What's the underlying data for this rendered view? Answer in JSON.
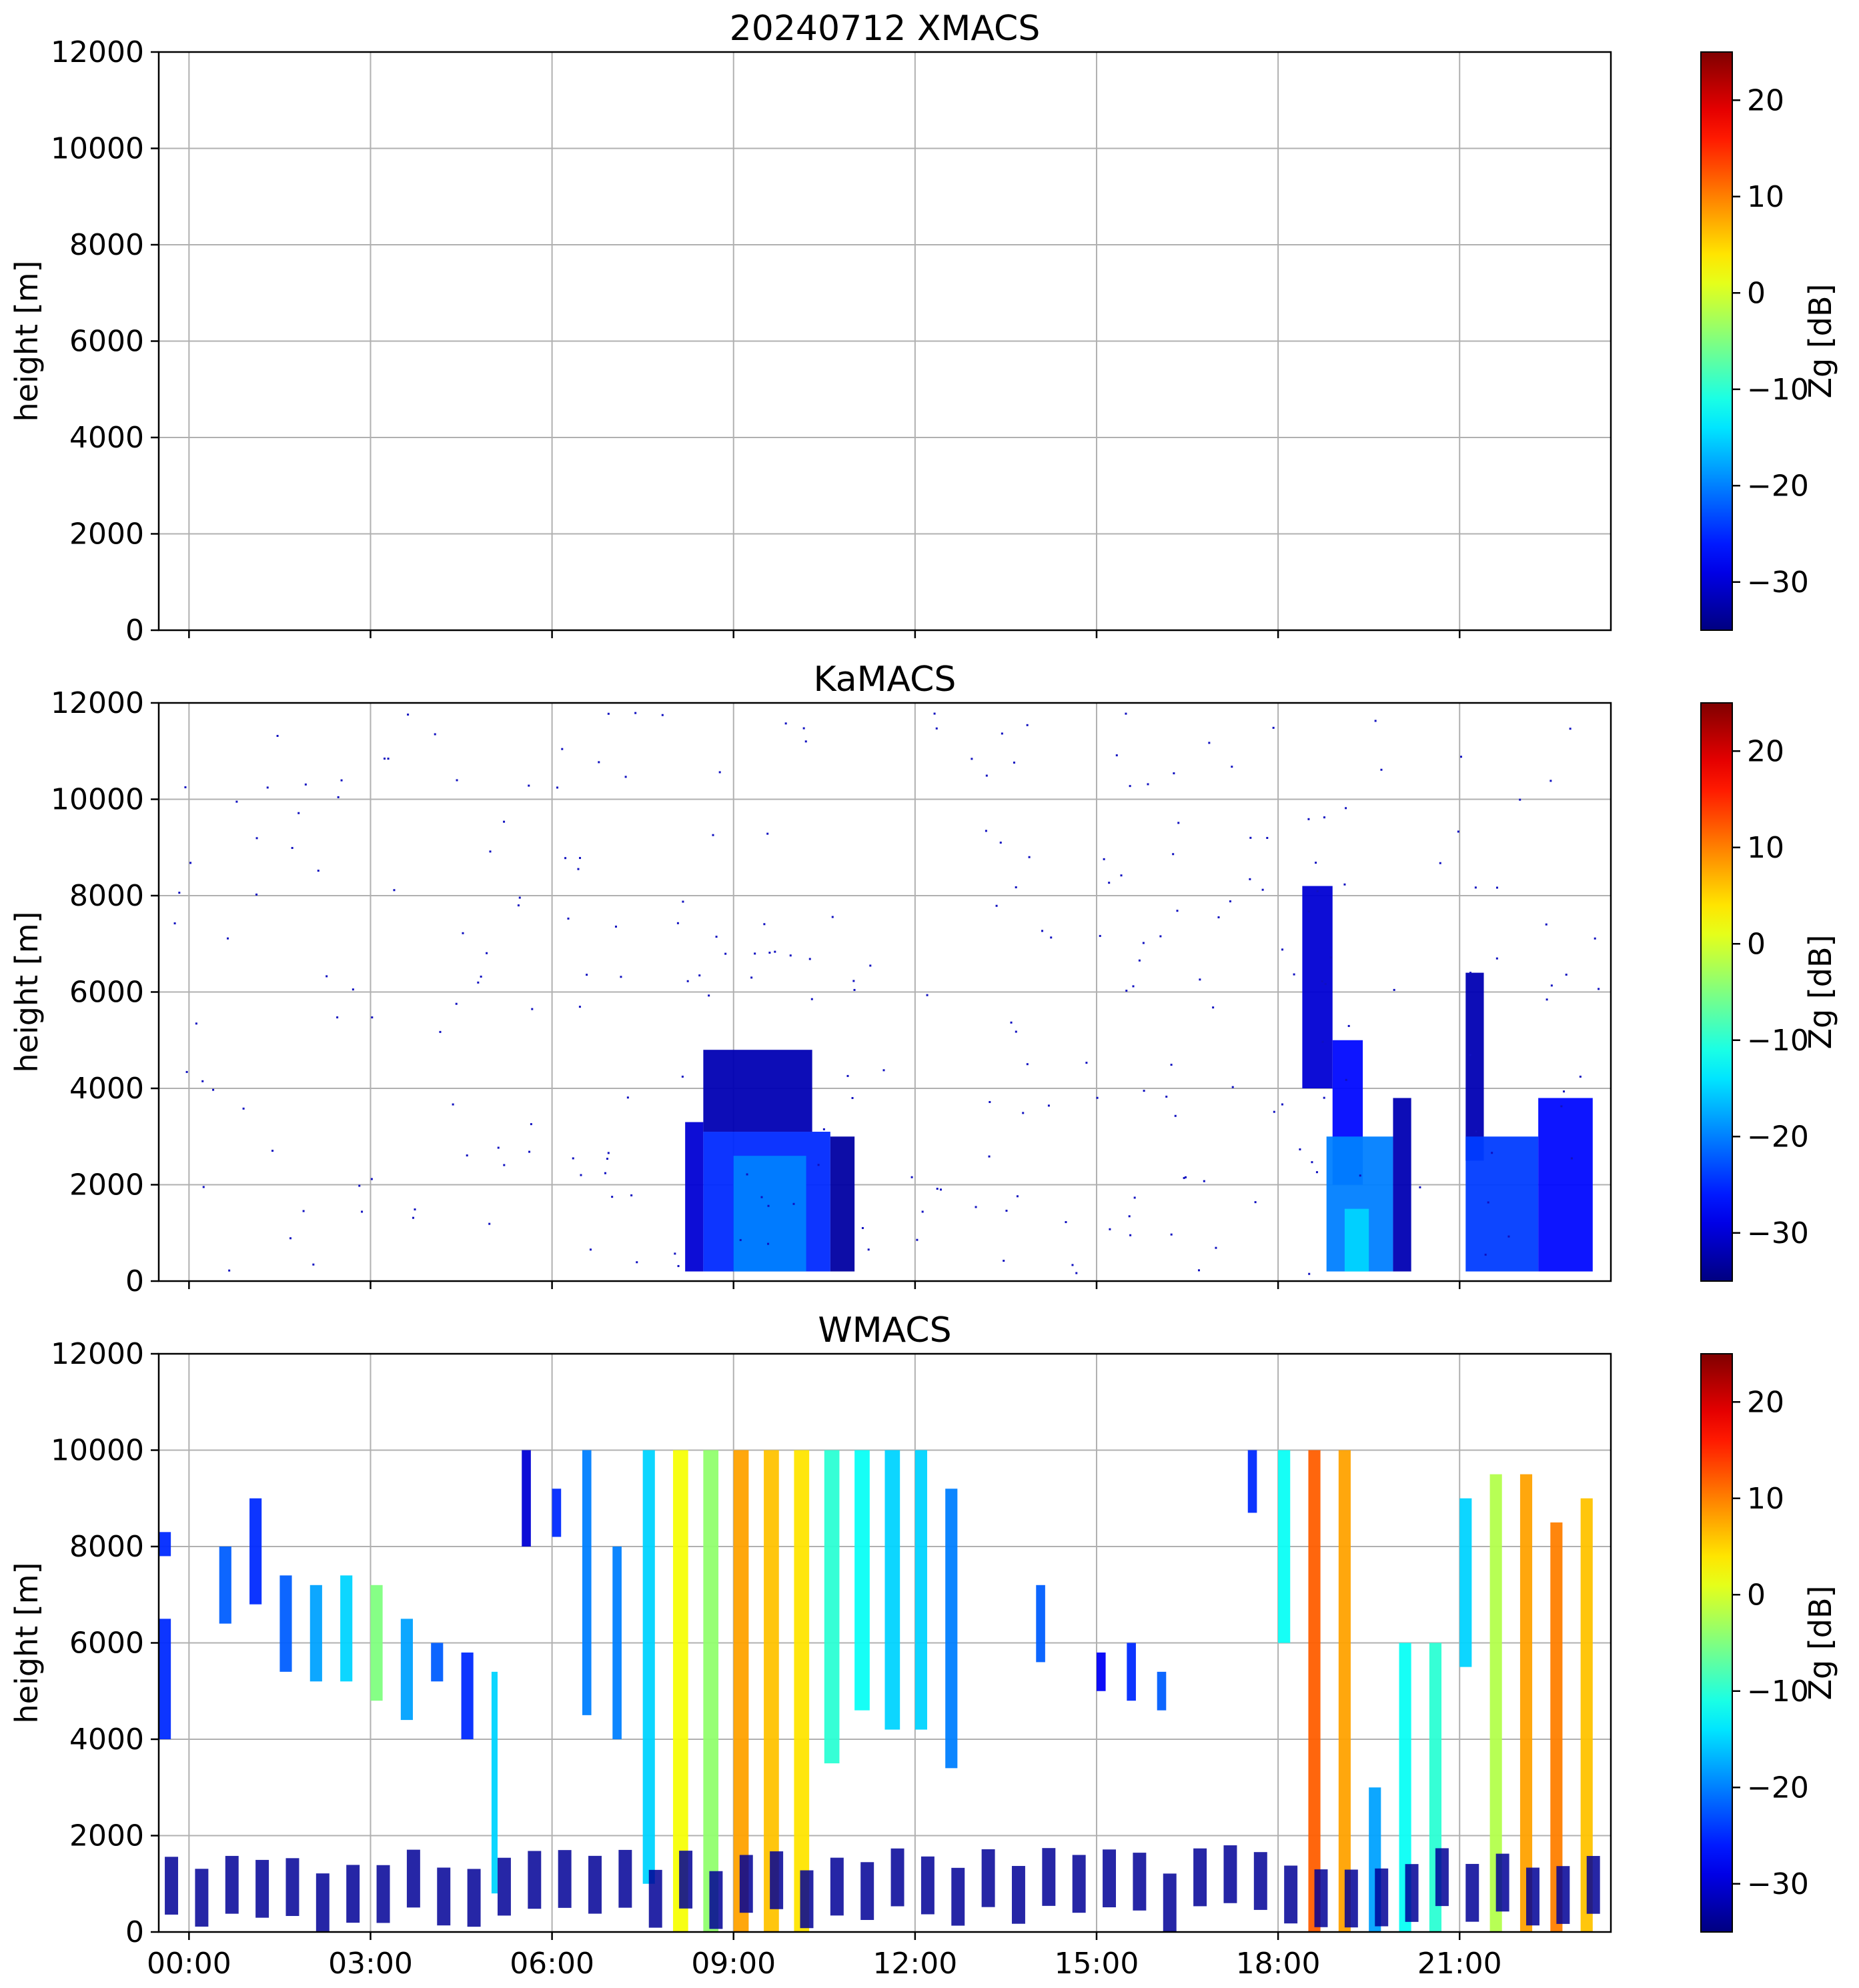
{
  "figure_title": "20240712 XMACS",
  "colorbar": {
    "label": "Zg [dB]",
    "range": [
      -35,
      25
    ],
    "ticks": [
      "20",
      "10",
      "0",
      "−10",
      "−20",
      "−30"
    ],
    "tick_values": [
      20,
      10,
      0,
      -10,
      -20,
      -30
    ],
    "colormap": "jet",
    "colors": [
      "#00007f",
      "#0000ff",
      "#007fff",
      "#00ffff",
      "#7fff7f",
      "#ffff00",
      "#ff7f00",
      "#ff0000",
      "#7f0000"
    ]
  },
  "xaxis": {
    "range_hours": [
      -0.5,
      23.5
    ],
    "tick_labels": [
      "00:00",
      "03:00",
      "06:00",
      "09:00",
      "12:00",
      "15:00",
      "18:00",
      "21:00"
    ]
  },
  "yaxis": {
    "label": "height [m]",
    "range": [
      0,
      12000
    ],
    "tick_labels": [
      "0",
      "2000",
      "4000",
      "6000",
      "8000",
      "10000",
      "12000"
    ]
  },
  "panels": [
    {
      "id": "xmacs",
      "title": "20240712 XMACS",
      "show_xticklabels": false
    },
    {
      "id": "kamacs",
      "title": "KaMACS",
      "show_xticklabels": false
    },
    {
      "id": "wmacs",
      "title": "WMACS",
      "show_xticklabels": true
    }
  ],
  "chart_data": [
    {
      "type": "heatmap",
      "title": "20240712 XMACS",
      "xlabel": "",
      "ylabel": "height [m]",
      "ylim": [
        0,
        12000
      ],
      "grid": true,
      "blocks": []
    },
    {
      "type": "heatmap",
      "title": "KaMACS",
      "xlabel": "",
      "ylabel": "height [m]",
      "ylim": [
        0,
        12000
      ],
      "grid": true,
      "blocks": [
        {
          "t0": 8.2,
          "t1": 8.5,
          "h0": 200,
          "h1": 3300,
          "zg": -30
        },
        {
          "t0": 8.5,
          "t1": 10.6,
          "h0": 200,
          "h1": 3100,
          "zg": -25
        },
        {
          "t0": 9.0,
          "t1": 10.2,
          "h0": 200,
          "h1": 2600,
          "zg": -20
        },
        {
          "t0": 8.5,
          "t1": 10.3,
          "h0": 3100,
          "h1": 4800,
          "zg": -32
        },
        {
          "t0": 10.6,
          "t1": 11.0,
          "h0": 200,
          "h1": 3000,
          "zg": -33
        },
        {
          "t0": 18.4,
          "t1": 18.9,
          "h0": 4000,
          "h1": 8200,
          "zg": -30
        },
        {
          "t0": 18.9,
          "t1": 19.4,
          "h0": 2000,
          "h1": 5000,
          "zg": -27
        },
        {
          "t0": 18.8,
          "t1": 19.9,
          "h0": 200,
          "h1": 3000,
          "zg": -20
        },
        {
          "t0": 19.1,
          "t1": 19.5,
          "h0": 200,
          "h1": 1500,
          "zg": -15
        },
        {
          "t0": 19.9,
          "t1": 20.2,
          "h0": 200,
          "h1": 3800,
          "zg": -32
        },
        {
          "t0": 21.1,
          "t1": 21.4,
          "h0": 2500,
          "h1": 6400,
          "zg": -32
        },
        {
          "t0": 21.1,
          "t1": 22.3,
          "h0": 200,
          "h1": 3000,
          "zg": -24
        },
        {
          "t0": 22.3,
          "t1": 23.2,
          "h0": 200,
          "h1": 3800,
          "zg": -27
        }
      ]
    },
    {
      "type": "heatmap",
      "title": "WMACS",
      "xlabel": "",
      "ylabel": "height [m]",
      "ylim": [
        0,
        12000
      ],
      "grid": true,
      "blocks": [
        {
          "t0": -0.5,
          "t1": -0.3,
          "h0": 4000,
          "h1": 6500,
          "zg": -25
        },
        {
          "t0": -0.5,
          "t1": -0.3,
          "h0": 7800,
          "h1": 8300,
          "zg": -25
        },
        {
          "t0": 0.5,
          "t1": 0.7,
          "h0": 6400,
          "h1": 8000,
          "zg": -22
        },
        {
          "t0": 1.0,
          "t1": 1.2,
          "h0": 6800,
          "h1": 9000,
          "zg": -25
        },
        {
          "t0": 1.5,
          "t1": 1.7,
          "h0": 5400,
          "h1": 7400,
          "zg": -22
        },
        {
          "t0": 2.0,
          "t1": 2.2,
          "h0": 5200,
          "h1": 7200,
          "zg": -18
        },
        {
          "t0": 2.5,
          "t1": 2.7,
          "h0": 5200,
          "h1": 7400,
          "zg": -15
        },
        {
          "t0": 3.0,
          "t1": 3.2,
          "h0": 4800,
          "h1": 7200,
          "zg": -5
        },
        {
          "t0": 3.5,
          "t1": 3.7,
          "h0": 4400,
          "h1": 6500,
          "zg": -18
        },
        {
          "t0": 4.0,
          "t1": 4.2,
          "h0": 5200,
          "h1": 6000,
          "zg": -22
        },
        {
          "t0": 4.5,
          "t1": 4.7,
          "h0": 4000,
          "h1": 5800,
          "zg": -25
        },
        {
          "t0": 5.0,
          "t1": 5.1,
          "h0": 800,
          "h1": 5400,
          "zg": -15
        },
        {
          "t0": 5.5,
          "t1": 5.65,
          "h0": 8000,
          "h1": 10000,
          "zg": -30
        },
        {
          "t0": 6.0,
          "t1": 6.15,
          "h0": 8200,
          "h1": 9200,
          "zg": -25
        },
        {
          "t0": 6.5,
          "t1": 6.65,
          "h0": 4500,
          "h1": 10000,
          "zg": -20
        },
        {
          "t0": 7.0,
          "t1": 7.15,
          "h0": 4000,
          "h1": 8000,
          "zg": -20
        },
        {
          "t0": 7.5,
          "t1": 7.7,
          "h0": 1000,
          "h1": 10000,
          "zg": -15
        },
        {
          "t0": 8.0,
          "t1": 8.25,
          "h0": 0,
          "h1": 10000,
          "zg": 2
        },
        {
          "t0": 8.5,
          "t1": 8.75,
          "h0": 0,
          "h1": 10000,
          "zg": -4
        },
        {
          "t0": 9.0,
          "t1": 9.25,
          "h0": 0,
          "h1": 10000,
          "zg": 8
        },
        {
          "t0": 9.5,
          "t1": 9.75,
          "h0": 0,
          "h1": 10000,
          "zg": 6
        },
        {
          "t0": 10.0,
          "t1": 10.25,
          "h0": 0,
          "h1": 10000,
          "zg": 4
        },
        {
          "t0": 10.5,
          "t1": 10.75,
          "h0": 3500,
          "h1": 10000,
          "zg": -10
        },
        {
          "t0": 11.0,
          "t1": 11.25,
          "h0": 4600,
          "h1": 10000,
          "zg": -12
        },
        {
          "t0": 11.5,
          "t1": 11.75,
          "h0": 4200,
          "h1": 10000,
          "zg": -15
        },
        {
          "t0": 12.0,
          "t1": 12.2,
          "h0": 4200,
          "h1": 10000,
          "zg": -15
        },
        {
          "t0": 12.5,
          "t1": 12.7,
          "h0": 3400,
          "h1": 9200,
          "zg": -20
        },
        {
          "t0": 14.0,
          "t1": 14.15,
          "h0": 5600,
          "h1": 7200,
          "zg": -22
        },
        {
          "t0": 15.0,
          "t1": 15.15,
          "h0": 5000,
          "h1": 5800,
          "zg": -28
        },
        {
          "t0": 15.5,
          "t1": 15.65,
          "h0": 4800,
          "h1": 6000,
          "zg": -25
        },
        {
          "t0": 16.0,
          "t1": 16.15,
          "h0": 4600,
          "h1": 5400,
          "zg": -22
        },
        {
          "t0": 17.5,
          "t1": 17.65,
          "h0": 8700,
          "h1": 10000,
          "zg": -25
        },
        {
          "t0": 18.0,
          "t1": 18.2,
          "h0": 6000,
          "h1": 10000,
          "zg": -12
        },
        {
          "t0": 18.5,
          "t1": 18.7,
          "h0": 0,
          "h1": 10000,
          "zg": 12
        },
        {
          "t0": 19.0,
          "t1": 19.2,
          "h0": 0,
          "h1": 10000,
          "zg": 8
        },
        {
          "t0": 19.5,
          "t1": 19.7,
          "h0": 0,
          "h1": 3000,
          "zg": -18
        },
        {
          "t0": 20.0,
          "t1": 20.2,
          "h0": 0,
          "h1": 6000,
          "zg": -12
        },
        {
          "t0": 20.5,
          "t1": 20.7,
          "h0": 0,
          "h1": 6000,
          "zg": -10
        },
        {
          "t0": 21.0,
          "t1": 21.2,
          "h0": 5500,
          "h1": 9000,
          "zg": -15
        },
        {
          "t0": 21.5,
          "t1": 21.7,
          "h0": 0,
          "h1": 9500,
          "zg": -2
        },
        {
          "t0": 22.0,
          "t1": 22.2,
          "h0": 0,
          "h1": 9500,
          "zg": 8
        },
        {
          "t0": 22.5,
          "t1": 22.7,
          "h0": 0,
          "h1": 8500,
          "zg": 10
        },
        {
          "t0": 23.0,
          "t1": 23.2,
          "h0": 0,
          "h1": 9000,
          "zg": 6
        }
      ]
    }
  ]
}
